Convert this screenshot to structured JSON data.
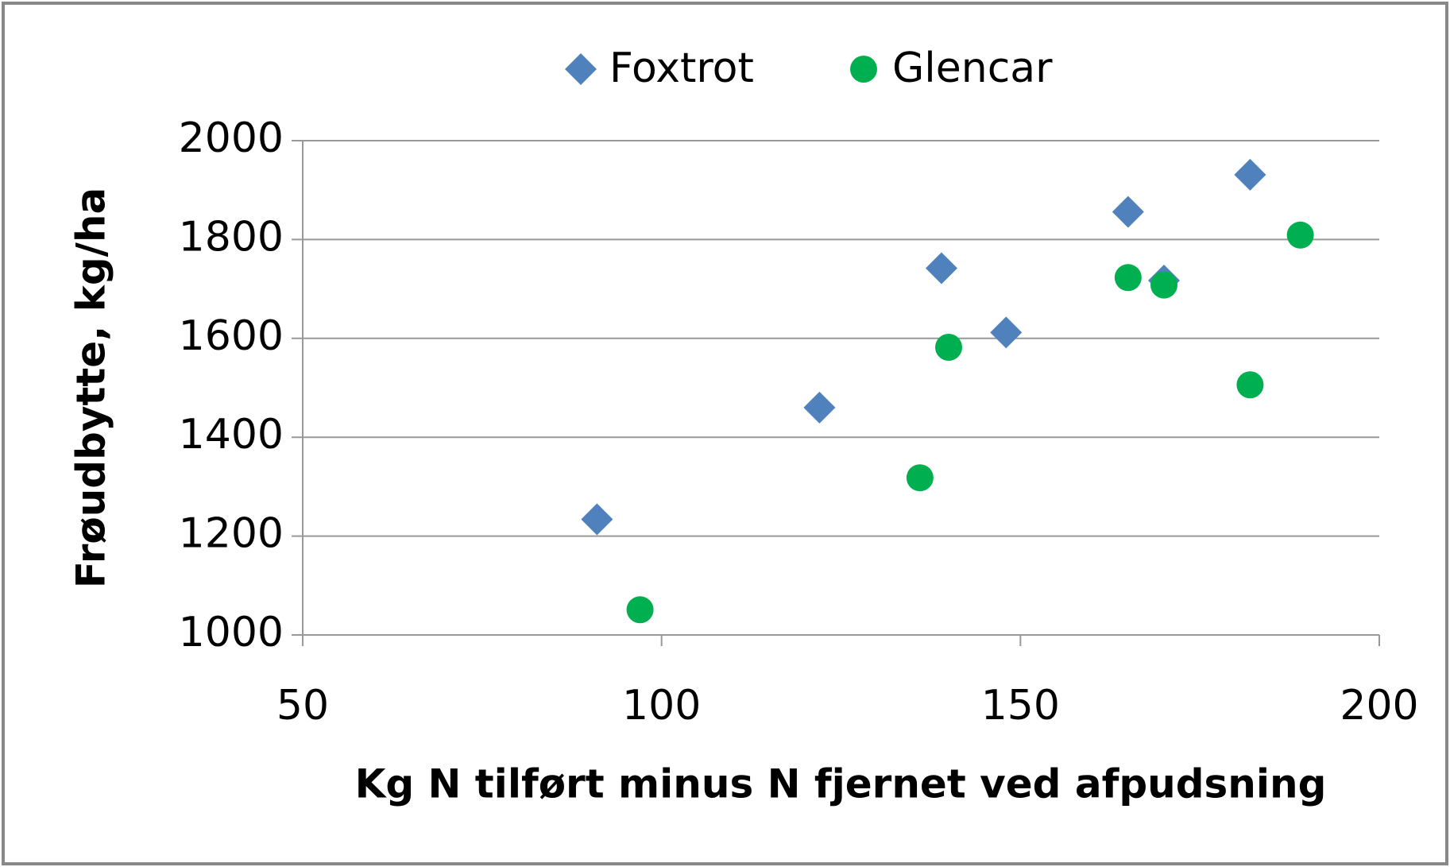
{
  "chart_data": {
    "type": "scatter",
    "x_label": "Kg N tilført minus N fjernet ved afpudsning",
    "y_label": "Frøudbytte, kg/ha",
    "series": [
      {
        "name": "Foxtrot",
        "color": "#4f81bd",
        "marker": "diamond",
        "x": [
          91,
          122,
          139,
          148,
          165,
          170,
          182
        ],
        "values": [
          1234,
          1460,
          1742,
          1612,
          1856,
          1717,
          1931
        ]
      },
      {
        "name": "Glencar",
        "color": "#00b050",
        "marker": "circle",
        "x": [
          97,
          136,
          140,
          165,
          170,
          182,
          189
        ],
        "values": [
          1051,
          1318,
          1582,
          1723,
          1708,
          1506,
          1809
        ]
      }
    ],
    "xlim": [
      50,
      200
    ],
    "xticks": [
      50,
      100,
      150,
      200
    ],
    "ylim": [
      1000,
      2000
    ],
    "yticks": [
      1000,
      1200,
      1400,
      1600,
      1800,
      2000
    ],
    "grid": true,
    "legend": "top"
  }
}
